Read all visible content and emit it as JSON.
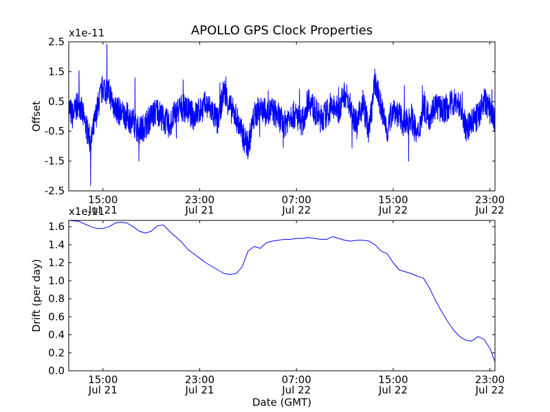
{
  "title": "APOLLO GPS Clock Properties",
  "colors": {
    "series": "#0000ff",
    "axes": "#000000",
    "background": "#ffffff"
  },
  "x_ticks": [
    {
      "hour": 15,
      "line1": "15:00",
      "line2": "Jul 21"
    },
    {
      "hour": 23,
      "line1": "23:00",
      "line2": "Jul 21"
    },
    {
      "hour": 31,
      "line1": "07:00",
      "line2": "Jul 22"
    },
    {
      "hour": 39,
      "line1": "15:00",
      "line2": "Jul 22"
    },
    {
      "hour": 47,
      "line1": "23:00",
      "line2": "Jul 22"
    }
  ],
  "chart_data": [
    {
      "type": "line",
      "title": "APOLLO GPS Clock Properties",
      "ylabel": "Offset",
      "xlabel": "",
      "y_multiplier": "x1e-11",
      "xlim": [
        "Jul 21 12:10",
        "Jul 22 23:25"
      ],
      "ylim": [
        -2.5,
        2.5
      ],
      "ytick_labels": [
        "2.5",
        "1.5",
        "0.5",
        "-0.5",
        "-1.5",
        "-2.5"
      ],
      "ytick_values": [
        2.5,
        1.5,
        0.5,
        -0.5,
        -1.5,
        -2.5
      ],
      "grid": false,
      "series": [
        {
          "noisy": true,
          "x_hours": [
            12.17,
            12.5,
            13.0,
            13.5,
            14.0,
            14.5,
            15.0,
            15.5,
            16.0,
            16.5,
            17.0,
            17.5,
            18.0,
            18.5,
            19.0,
            19.5,
            20.0,
            20.5,
            21.0,
            21.5,
            22.0,
            22.5,
            23.0,
            23.5,
            24.0,
            24.5,
            25.0,
            25.5,
            26.0,
            26.5,
            27.0,
            27.5,
            28.0,
            28.5,
            29.0,
            29.5,
            30.0,
            30.5,
            31.0,
            31.5,
            32.0,
            32.5,
            33.0,
            33.5,
            34.0,
            34.5,
            35.0,
            35.5,
            36.0,
            36.5,
            37.0,
            37.5,
            38.0,
            38.5,
            39.0,
            39.5,
            40.0,
            40.5,
            41.0,
            41.5,
            42.0,
            42.5,
            43.0,
            43.5,
            44.0,
            44.5,
            45.0,
            45.5,
            46.0,
            46.5,
            47.0,
            47.42
          ],
          "values": [
            0.3,
            0.0,
            0.5,
            -0.2,
            -0.9,
            0.2,
            1.0,
            0.8,
            0.3,
            0.1,
            0.0,
            -0.2,
            -0.5,
            -0.3,
            0.0,
            0.2,
            -0.1,
            -0.3,
            0.1,
            0.3,
            0.2,
            0.0,
            0.2,
            0.4,
            0.2,
            -0.2,
            0.9,
            0.3,
            0.0,
            -0.6,
            -1.0,
            0.0,
            0.3,
            0.1,
            0.2,
            0.0,
            -0.3,
            0.1,
            0.0,
            -0.2,
            0.6,
            0.2,
            -0.1,
            0.1,
            0.3,
            0.2,
            0.8,
            0.3,
            -0.3,
            0.5,
            -0.5,
            1.2,
            0.3,
            -0.5,
            0.3,
            0.0,
            -0.3,
            0.0,
            -0.7,
            0.3,
            0.0,
            0.4,
            0.2,
            0.3,
            0.5,
            0.4,
            -0.4,
            -0.2,
            0.0,
            0.5,
            0.3,
            -0.2
          ]
        }
      ]
    },
    {
      "type": "line",
      "title": "",
      "ylabel": "Drift (per day)",
      "xlabel": "Date (GMT)",
      "y_multiplier": "x1e-11",
      "xlim": [
        "Jul 21 12:10",
        "Jul 22 23:25"
      ],
      "ylim": [
        0.0,
        1.67
      ],
      "ytick_labels": [
        "1.6",
        "1.4",
        "1.2",
        "1.0",
        "0.8",
        "0.6",
        "0.4",
        "0.2",
        "0.0"
      ],
      "ytick_values": [
        1.6,
        1.4,
        1.2,
        1.0,
        0.8,
        0.6,
        0.4,
        0.2,
        0.0
      ],
      "grid": false,
      "series": [
        {
          "noisy": false,
          "x_hours": [
            12.17,
            13.0,
            14.0,
            14.5,
            15.0,
            15.5,
            16.0,
            16.5,
            17.0,
            17.5,
            18.0,
            18.5,
            19.0,
            19.5,
            20.0,
            20.5,
            21.0,
            21.5,
            22.0,
            22.5,
            23.0,
            23.5,
            24.0,
            24.5,
            25.0,
            25.5,
            26.0,
            26.5,
            27.0,
            27.5,
            28.0,
            28.5,
            29.0,
            29.5,
            30.0,
            30.5,
            31.0,
            31.5,
            32.0,
            32.5,
            33.0,
            33.5,
            34.0,
            34.5,
            35.0,
            35.5,
            36.0,
            36.5,
            37.0,
            37.5,
            38.0,
            38.5,
            39.0,
            39.5,
            40.0,
            40.5,
            41.0,
            41.5,
            42.0,
            42.5,
            43.0,
            43.5,
            44.0,
            44.5,
            45.0,
            45.5,
            46.0,
            46.5,
            47.0,
            47.42
          ],
          "values": [
            1.67,
            1.66,
            1.6,
            1.58,
            1.58,
            1.6,
            1.64,
            1.65,
            1.64,
            1.6,
            1.55,
            1.53,
            1.55,
            1.61,
            1.62,
            1.55,
            1.49,
            1.43,
            1.35,
            1.3,
            1.25,
            1.2,
            1.16,
            1.12,
            1.08,
            1.07,
            1.08,
            1.15,
            1.33,
            1.38,
            1.36,
            1.42,
            1.44,
            1.45,
            1.46,
            1.46,
            1.47,
            1.47,
            1.48,
            1.47,
            1.46,
            1.46,
            1.49,
            1.47,
            1.45,
            1.44,
            1.45,
            1.45,
            1.44,
            1.4,
            1.33,
            1.3,
            1.2,
            1.12,
            1.1,
            1.08,
            1.05,
            1.03,
            0.92,
            0.78,
            0.66,
            0.55,
            0.45,
            0.38,
            0.34,
            0.33,
            0.38,
            0.35,
            0.25,
            0.1
          ]
        }
      ]
    }
  ]
}
